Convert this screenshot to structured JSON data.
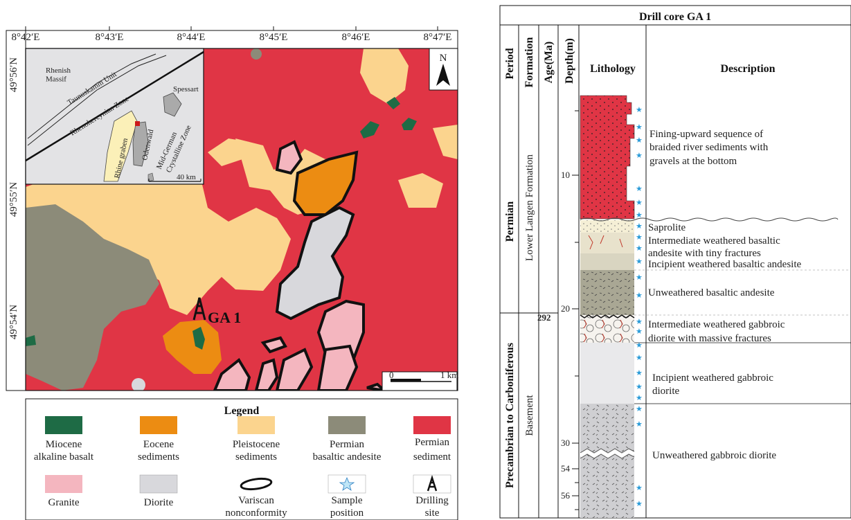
{
  "map": {
    "lon_ticks": [
      "8°42′E",
      "8°43′E",
      "8°44′E",
      "8°45′E",
      "8°46′E",
      "8°47′E"
    ],
    "lat_ticks": [
      "49°56′N",
      "49°55′N",
      "49°54′N"
    ],
    "north_label": "N",
    "drill_site_label": "GA 1",
    "scale_start": "0",
    "scale_end": "1 km",
    "colors": {
      "permian_sediment": "#e03545",
      "pleistocene": "#fbd48e",
      "eocene": "#ec8c12",
      "miocene": "#1e6b45",
      "permian_andesite": "#8c8b79",
      "granite": "#f4b6bf",
      "diorite": "#d8d8dc"
    },
    "inset": {
      "rhenish_massif": "Rhenish\nMassif",
      "taunuskamm": "Taunuskamm Unit",
      "rhenohercynian": "Rhenohercynian Zone",
      "spessart": "Spessart",
      "rhine_graben": "Rhine graben",
      "odenwald": "Odenwald",
      "mid_german": "Mid-German",
      "crystalline": "Crystalline Zone",
      "scale": "40 km"
    }
  },
  "legend": {
    "title": "Legend",
    "items": [
      {
        "line1": "Miocene",
        "line2": "alkaline basalt"
      },
      {
        "line1": "Eocene",
        "line2": "sediments"
      },
      {
        "line1": "Pleistocene",
        "line2": "sediments"
      },
      {
        "line1": "Permian",
        "line2": "basaltic andesite"
      },
      {
        "line1": "Permian",
        "line2": "sediment"
      },
      {
        "line1": "Granite",
        "line2": ""
      },
      {
        "line1": "Diorite",
        "line2": ""
      },
      {
        "line1": "Variscan",
        "line2": "nonconformity"
      },
      {
        "line1": "Sample",
        "line2": "position"
      },
      {
        "line1": "Drilling",
        "line2": "site"
      }
    ]
  },
  "core": {
    "title": "Drill core GA 1",
    "headers": {
      "period": "Period",
      "formation": "Formation",
      "age": "Age(Ma)",
      "depth": "Depth(m)",
      "lithology": "Lithology",
      "description": "Description"
    },
    "periods": [
      "Permian",
      "Precambrian to Carboniferous"
    ],
    "formations": [
      "Lower Langen Formation",
      "Basement"
    ],
    "age_boundary": "292",
    "depth_ticks": [
      "10",
      "20",
      "30",
      "54",
      "56"
    ],
    "descriptions": [
      "Fining-upward sequence of",
      "braided river sediments with",
      "gravels at the bottom",
      "Saprolite",
      "Intermediate weathered basaltic",
      "andesite  with tiny fractures",
      "Incipient weathered basaltic andesite",
      "Unweathered basaltic andesite",
      "Intermediate weathered gabbroic",
      "diorite  with  massive  fractures",
      "Incipient weathered gabbroic",
      "diorite",
      "Unweathered gabbroic diorite"
    ]
  }
}
